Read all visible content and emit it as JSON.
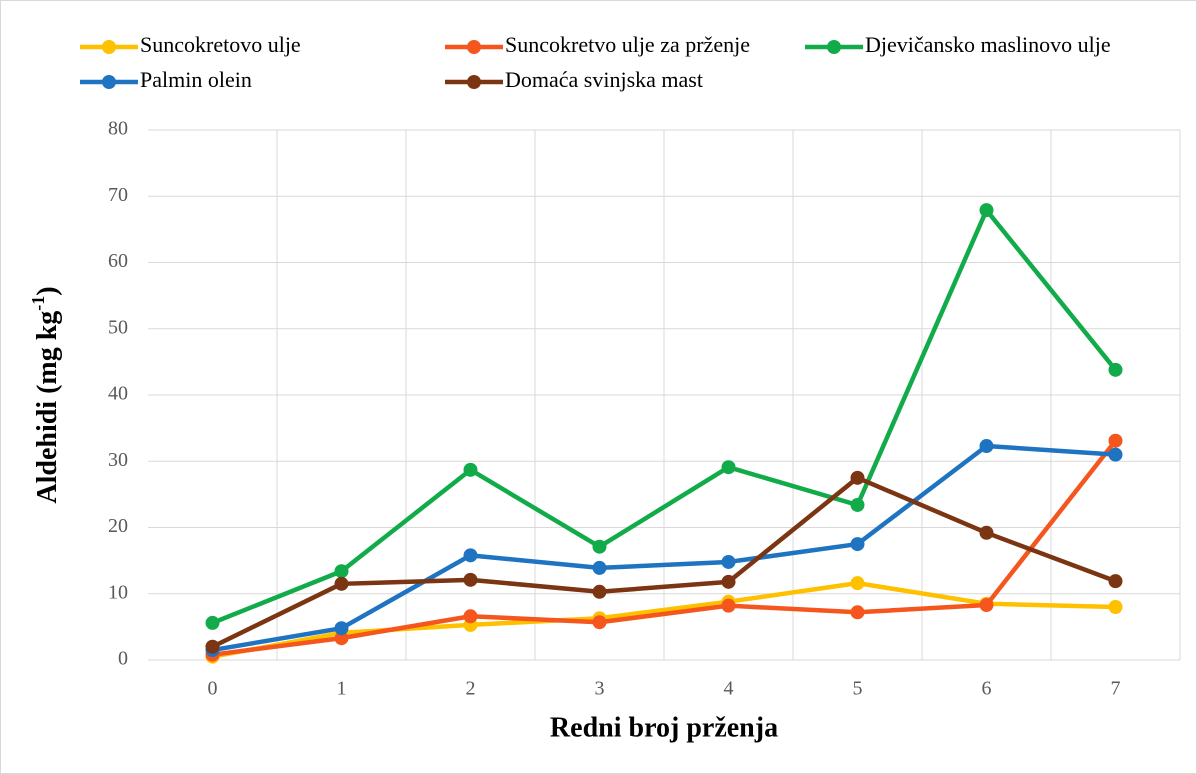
{
  "chart_data": {
    "type": "line",
    "x_label": "Redni broj prženja",
    "y_label": {
      "text": "Aldehidi (mg kg",
      "superscript": "-1",
      "suffix": ")"
    },
    "categories": [
      "0",
      "1",
      "2",
      "3",
      "4",
      "5",
      "6",
      "7"
    ],
    "series": [
      {
        "name": "Suncokretovo ulje",
        "color": "#ffc000",
        "values": [
          0.5,
          4.1,
          5.3,
          6.3,
          8.8,
          11.6,
          8.5,
          8.0
        ]
      },
      {
        "name": "Suncokretvo ulje za prženje",
        "color": "#f4561d",
        "values": [
          0.8,
          3.3,
          6.6,
          5.7,
          8.2,
          7.2,
          8.3,
          33.1
        ]
      },
      {
        "name": "Djevičansko maslinovo ulje",
        "color": "#12ab4a",
        "values": [
          5.6,
          13.4,
          28.7,
          17.1,
          29.1,
          23.4,
          67.9,
          43.8
        ]
      },
      {
        "name": "Palmin olein",
        "color": "#1f74c1",
        "values": [
          1.5,
          4.8,
          15.8,
          13.9,
          14.8,
          17.5,
          32.3,
          31.0
        ]
      },
      {
        "name": "Domaća svinjska mast",
        "color": "#7b3512",
        "values": [
          2.0,
          11.5,
          12.1,
          10.3,
          11.8,
          27.5,
          19.2,
          11.9
        ]
      }
    ],
    "ylim": [
      0,
      80
    ],
    "yticks": [
      0,
      10,
      20,
      30,
      40,
      50,
      60,
      70,
      80
    ],
    "grid": true,
    "legend": "top"
  }
}
